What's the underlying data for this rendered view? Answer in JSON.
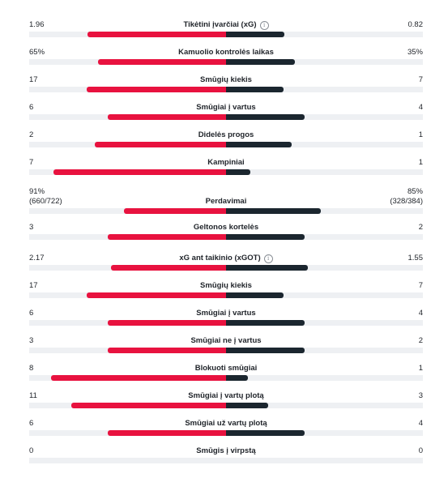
{
  "stats": [
    {
      "label": "Tikėtini įvarčiai (xG)",
      "info": true,
      "home": "1.96",
      "away": "0.82",
      "home_frac": 0.705,
      "away_frac": 0.295
    },
    {
      "label": "Kamuolio kontrolės laikas",
      "info": false,
      "home": "65%",
      "away": "35%",
      "home_frac": 0.65,
      "away_frac": 0.35
    },
    {
      "label": "Smūgių kiekis",
      "info": false,
      "home": "17",
      "away": "7",
      "home_frac": 0.708,
      "away_frac": 0.292
    },
    {
      "label": "Smūgiai į vartus",
      "info": false,
      "home": "6",
      "away": "4",
      "home_frac": 0.6,
      "away_frac": 0.4
    },
    {
      "label": "Didelės progos",
      "info": false,
      "home": "2",
      "away": "1",
      "home_frac": 0.667,
      "away_frac": 0.333
    },
    {
      "label": "Kampiniai",
      "info": false,
      "home": "7",
      "away": "1",
      "home_frac": 0.875,
      "away_frac": 0.125
    },
    {
      "label": "Perdavimai",
      "info": false,
      "home": "91%",
      "away": "85%",
      "home_sub": "(660/722)",
      "away_sub": "(328/384)",
      "home_frac": 0.517,
      "away_frac": 0.483
    },
    {
      "label": "Geltonos kortelės",
      "info": false,
      "home": "3",
      "away": "2",
      "home_frac": 0.6,
      "away_frac": 0.4
    },
    {
      "label": "xG ant taikinio (xGOT)",
      "info": true,
      "home": "2.17",
      "away": "1.55",
      "home_frac": 0.583,
      "away_frac": 0.417
    },
    {
      "label": "Smūgių kiekis",
      "info": false,
      "home": "17",
      "away": "7",
      "home_frac": 0.708,
      "away_frac": 0.292
    },
    {
      "label": "Smūgiai į vartus",
      "info": false,
      "home": "6",
      "away": "4",
      "home_frac": 0.6,
      "away_frac": 0.4
    },
    {
      "label": "Smūgiai ne į vartus",
      "info": false,
      "home": "3",
      "away": "2",
      "home_frac": 0.6,
      "away_frac": 0.4
    },
    {
      "label": "Blokuoti smūgiai",
      "info": false,
      "home": "8",
      "away": "1",
      "home_frac": 0.889,
      "away_frac": 0.111
    },
    {
      "label": "Smūgiai į vartų plotą",
      "info": false,
      "home": "11",
      "away": "3",
      "home_frac": 0.786,
      "away_frac": 0.214
    },
    {
      "label": "Smūgiai už vartų plotą",
      "info": false,
      "home": "6",
      "away": "4",
      "home_frac": 0.6,
      "away_frac": 0.4
    },
    {
      "label": "Smūgis į virpstą",
      "info": false,
      "home": "0",
      "away": "0",
      "home_frac": 0,
      "away_frac": 0
    }
  ],
  "colors": {
    "home": "#e8123f",
    "away": "#1b262f",
    "track": "#eef0f3"
  },
  "icons": {
    "info": "info-icon"
  }
}
